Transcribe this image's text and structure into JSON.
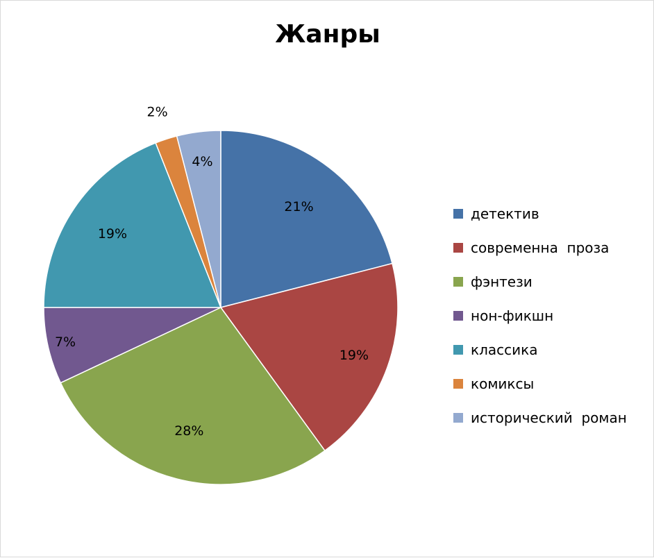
{
  "chart_data": {
    "type": "pie",
    "title": "Жанры",
    "categories": [
      "детектив",
      "современна  проза",
      "фэнтези",
      "нон-фикшн",
      "классика",
      "комиксы",
      "исторический  роман"
    ],
    "values": [
      21,
      19,
      28,
      7,
      19,
      2,
      4
    ],
    "value_labels": [
      "21%",
      "19%",
      "28%",
      "7%",
      "19%",
      "2%",
      "4%"
    ],
    "colors": [
      "#4572A7",
      "#AA4643",
      "#89A54E",
      "#71588F",
      "#4198AF",
      "#DB843D",
      "#93A9CF"
    ],
    "start_angle_deg": 0,
    "direction": "clockwise",
    "legend_position": "right"
  }
}
